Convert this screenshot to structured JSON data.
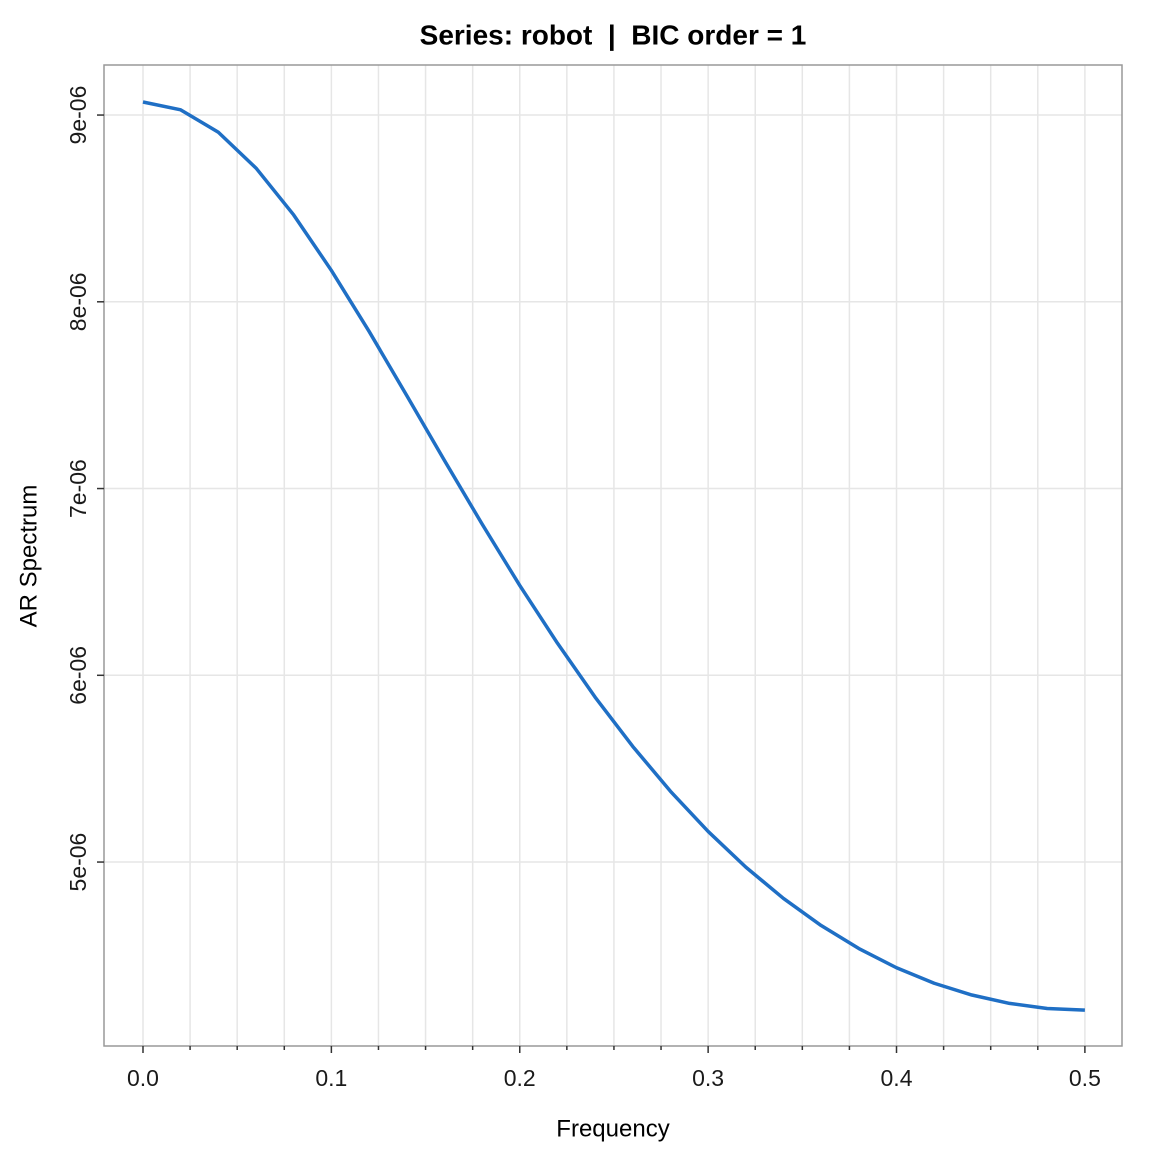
{
  "chart_data": {
    "type": "line",
    "title": "Series: robot  |  BIC order = 1",
    "x_label": "Frequency",
    "y_label": "AR Spectrum",
    "x": [
      0,
      0.02,
      0.04,
      0.06,
      0.08,
      0.1,
      0.12,
      0.14,
      0.16,
      0.18,
      0.2,
      0.22,
      0.24,
      0.26,
      0.28,
      0.3,
      0.32,
      0.34,
      0.36,
      0.38,
      0.4,
      0.42,
      0.44,
      0.46,
      0.48,
      0.5
    ],
    "series": [
      {
        "name": "AR spectrum",
        "color": "#1f6fc5",
        "values": [
          9.07e-06,
          9.028e-06,
          8.908e-06,
          8.716e-06,
          8.465e-06,
          8.168e-06,
          7.842e-06,
          7.498e-06,
          7.151e-06,
          6.81e-06,
          6.481e-06,
          6.172e-06,
          5.883e-06,
          5.619e-06,
          5.379e-06,
          5.164e-06,
          4.973e-06,
          4.805e-06,
          4.66e-06,
          4.537e-06,
          4.434e-06,
          4.351e-06,
          4.288e-06,
          4.243e-06,
          4.216e-06,
          4.207e-06
        ]
      }
    ],
    "xlim": [
      -0.0207,
      0.5197
    ],
    "ylim": [
      4.015e-06,
      9.268e-06
    ],
    "xticks": [
      {
        "value": 0,
        "label": "0.0"
      },
      0.1,
      0.2,
      0.3,
      0.4,
      0.5
    ],
    "x_minor_ticks": [
      0.025,
      0.05,
      0.075,
      0.125,
      0.15,
      0.175,
      0.225,
      0.25,
      0.275,
      0.325,
      0.35,
      0.375,
      0.425,
      0.45,
      0.475
    ],
    "yticks": [
      {
        "value": 5e-06,
        "label": "5e-06"
      },
      {
        "value": 6e-06,
        "label": "6e-06"
      },
      {
        "value": 7e-06,
        "label": "7e-06"
      },
      {
        "value": 8e-06,
        "label": "8e-06"
      },
      {
        "value": 9e-06,
        "label": "9e-06"
      }
    ],
    "grid": true
  }
}
